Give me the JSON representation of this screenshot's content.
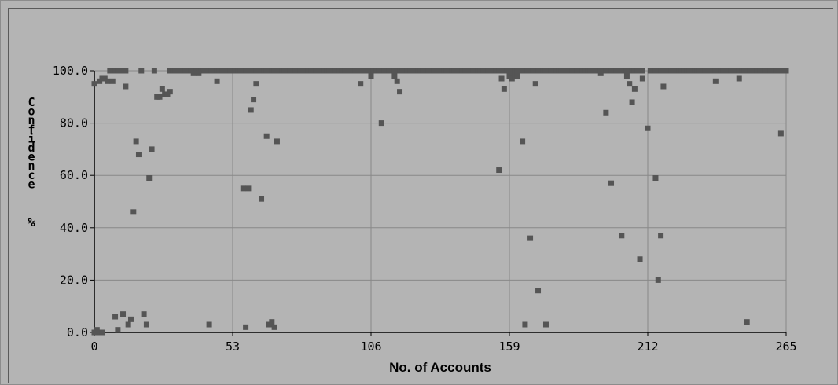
{
  "chart_data": {
    "type": "scatter",
    "title": "",
    "xlabel": "No. of Accounts",
    "ylabel": "Confidence %",
    "xlim": [
      0,
      265
    ],
    "ylim": [
      0,
      100
    ],
    "x_ticks": [
      0,
      53,
      106,
      159,
      212,
      265
    ],
    "x_tick_labels": [
      "0",
      "53",
      "106",
      "159",
      "212",
      "265"
    ],
    "y_ticks": [
      0,
      20,
      40,
      60,
      80,
      100
    ],
    "y_tick_labels": [
      "0.0",
      "20.0",
      "40.0",
      "60.0",
      "80.0",
      "100.0"
    ],
    "grid": true,
    "marker_color": "#555555",
    "grid_color": "#888888",
    "background_color": "#b4b4b4",
    "series": [
      {
        "points": [
          [
            0,
            0
          ],
          [
            1,
            0
          ],
          [
            2,
            0
          ],
          [
            3,
            0
          ],
          [
            1,
            1
          ],
          [
            0,
            95
          ],
          [
            2,
            96
          ],
          [
            3,
            97
          ],
          [
            4,
            97
          ],
          [
            5,
            96
          ],
          [
            6,
            100
          ],
          [
            7,
            96
          ],
          [
            8,
            6
          ],
          [
            9,
            1
          ],
          [
            10,
            100
          ],
          [
            11,
            7
          ],
          [
            12,
            94
          ],
          [
            13,
            3
          ],
          [
            14,
            5
          ],
          [
            15,
            46
          ],
          [
            16,
            73
          ],
          [
            17,
            68
          ],
          [
            18,
            100
          ],
          [
            19,
            7
          ],
          [
            20,
            3
          ],
          [
            21,
            59
          ],
          [
            22,
            70
          ],
          [
            23,
            100
          ],
          [
            24,
            90
          ],
          [
            25,
            90
          ],
          [
            26,
            93
          ],
          [
            27,
            91
          ],
          [
            28,
            91
          ],
          [
            29,
            92
          ],
          [
            38,
            99
          ],
          [
            40,
            99
          ],
          [
            47,
            96
          ],
          [
            44,
            3
          ],
          [
            57,
            55
          ],
          [
            58,
            2
          ],
          [
            59,
            55
          ],
          [
            60,
            85
          ],
          [
            61,
            89
          ],
          [
            62,
            95
          ],
          [
            64,
            51
          ],
          [
            66,
            75
          ],
          [
            67,
            3
          ],
          [
            68,
            4
          ],
          [
            69,
            2
          ],
          [
            70,
            73
          ],
          [
            102,
            95
          ],
          [
            106,
            98
          ],
          [
            110,
            80
          ],
          [
            115,
            98
          ],
          [
            116,
            96
          ],
          [
            117,
            92
          ],
          [
            156,
            97
          ],
          [
            155,
            62
          ],
          [
            157,
            93
          ],
          [
            159,
            98
          ],
          [
            160,
            97
          ],
          [
            161,
            98
          ],
          [
            162,
            98
          ],
          [
            164,
            73
          ],
          [
            165,
            3
          ],
          [
            167,
            36
          ],
          [
            169,
            95
          ],
          [
            170,
            16
          ],
          [
            173,
            3
          ],
          [
            194,
            99
          ],
          [
            196,
            84
          ],
          [
            198,
            57
          ],
          [
            200,
            100
          ],
          [
            202,
            37
          ],
          [
            204,
            98
          ],
          [
            205,
            95
          ],
          [
            206,
            88
          ],
          [
            207,
            93
          ],
          [
            209,
            28
          ],
          [
            210,
            97
          ],
          [
            212,
            78
          ],
          [
            213,
            100
          ],
          [
            215,
            59
          ],
          [
            216,
            20
          ],
          [
            217,
            37
          ],
          [
            218,
            94
          ],
          [
            238,
            96
          ],
          [
            241,
            100
          ],
          [
            247,
            97
          ],
          [
            250,
            4
          ],
          [
            264,
            100
          ],
          [
            263,
            76
          ],
          [
            265,
            100
          ]
        ],
        "top_runs": [
          [
            6,
            12
          ],
          [
            29,
            53
          ],
          [
            53,
            70
          ],
          [
            70,
            106
          ],
          [
            106,
            116
          ],
          [
            116,
            155
          ],
          [
            155,
            159
          ],
          [
            161,
            194
          ],
          [
            196,
            210
          ],
          [
            214,
            265
          ]
        ]
      }
    ]
  }
}
